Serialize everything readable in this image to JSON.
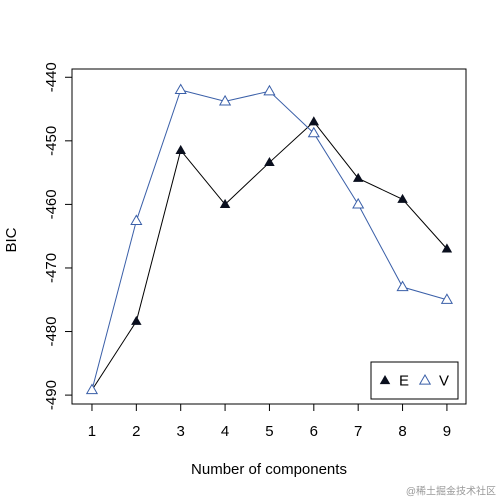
{
  "chart_data": {
    "type": "line",
    "x_label": "Number of components",
    "y_label": "BIC",
    "x": [
      1,
      2,
      3,
      4,
      5,
      6,
      7,
      8,
      9
    ],
    "series": [
      {
        "name": "E",
        "color": "#0a0f1e",
        "values": [
          -489.2,
          -478.4,
          -451.5,
          -460,
          -453.4,
          -447,
          -455.9,
          -459.2,
          -467
        ]
      },
      {
        "name": "V",
        "color": "#3a5fa8",
        "values": [
          -489.2,
          -462.6,
          -442,
          -443.8,
          -442.2,
          -448.8,
          -460,
          -473,
          -475
        ]
      }
    ],
    "xlim": [
      0.55,
      9.43
    ],
    "ylim": [
      -491.4,
      -438.7
    ],
    "xticks": [
      1,
      2,
      3,
      4,
      5,
      6,
      7,
      8,
      9
    ],
    "yticks": [
      -490,
      -480,
      -470,
      -460,
      -450,
      -440
    ],
    "legend": "bottom-right",
    "grid": false,
    "watermark": "@稀土掘金技术社区"
  }
}
